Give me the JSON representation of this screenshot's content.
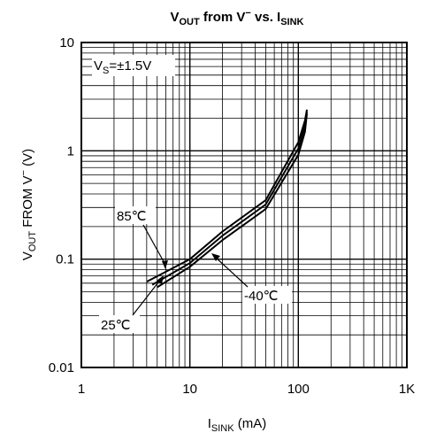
{
  "chart_data": {
    "type": "line",
    "title": {
      "main": "V",
      "sub1": "OUT",
      "mid1": " from V",
      "sup": "−",
      "mid2": " vs. I",
      "sub2": "SINK"
    },
    "xlabel": {
      "main": "I",
      "sub": "SINK",
      "rest": " (mA)"
    },
    "ylabel": {
      "main": "V",
      "sub": "OUT",
      "rest": " FROM V",
      "sup": "−",
      "tail": " (V)"
    },
    "x_scale": "log",
    "y_scale": "log",
    "xlim": [
      1,
      1000
    ],
    "ylim": [
      0.01,
      10
    ],
    "x_ticks": [
      {
        "value": 1,
        "label": "1"
      },
      {
        "value": 10,
        "label": "10"
      },
      {
        "value": 100,
        "label": "100"
      },
      {
        "value": 1000,
        "label": "1K"
      }
    ],
    "y_ticks": [
      {
        "value": 0.01,
        "label": "0.01"
      },
      {
        "value": 0.1,
        "label": "0.1"
      },
      {
        "value": 1,
        "label": "1"
      },
      {
        "value": 10,
        "label": "10"
      }
    ],
    "grid": true,
    "condition": {
      "main": "V",
      "sub": "S",
      "rest": "=±1.5V"
    },
    "series": [
      {
        "name": "85℃",
        "x": [
          4,
          10,
          20,
          50,
          100,
          115,
          120
        ],
        "y": [
          0.062,
          0.1,
          0.18,
          0.35,
          1.2,
          1.9,
          2.4
        ]
      },
      {
        "name": "25℃",
        "x": [
          4.5,
          10,
          20,
          50,
          100,
          115,
          120
        ],
        "y": [
          0.058,
          0.092,
          0.165,
          0.32,
          1.05,
          1.7,
          2.3
        ]
      },
      {
        "name": "-40℃",
        "x": [
          5,
          10,
          20,
          50,
          100,
          115,
          120
        ],
        "y": [
          0.055,
          0.085,
          0.15,
          0.29,
          0.92,
          1.5,
          2.2
        ]
      }
    ],
    "annotations": [
      {
        "label": "85℃",
        "series": "85℃"
      },
      {
        "label": "25℃",
        "series": "25℃"
      },
      {
        "label": "-40℃",
        "series": "-40℃"
      }
    ]
  }
}
